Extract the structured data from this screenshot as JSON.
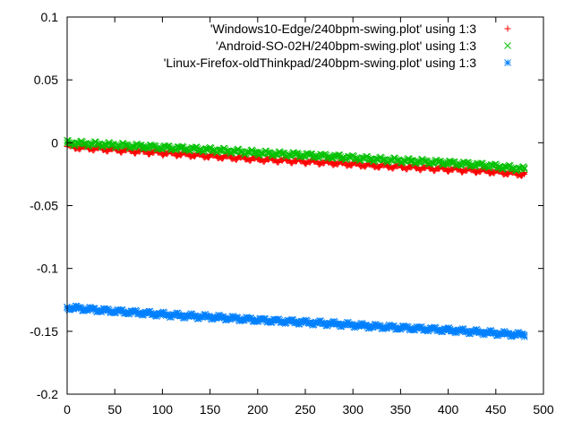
{
  "chart_data": {
    "type": "scatter",
    "title": "",
    "xlabel": "",
    "ylabel": "",
    "xlim": [
      0,
      500
    ],
    "ylim": [
      -0.2,
      0.1
    ],
    "x_ticks": [
      0,
      50,
      100,
      150,
      200,
      250,
      300,
      350,
      400,
      450,
      500
    ],
    "x_tick_labels": [
      "0",
      "50",
      "100",
      "150",
      "200",
      "250",
      "300",
      "350",
      "400",
      "450",
      "500"
    ],
    "y_ticks": [
      -0.2,
      -0.15,
      -0.1,
      -0.05,
      0,
      0.05,
      0.1
    ],
    "y_tick_labels": [
      "-0.2",
      "-0.15",
      "-0.1",
      "-0.05",
      "0",
      "0.05",
      "0.1"
    ],
    "grid": false,
    "legend_position": "top-right",
    "series": [
      {
        "name": "'Windows10-Edge/240bpm-swing.plot' using 1:3",
        "marker": "plus",
        "color": "#ff0000",
        "x": [
          0,
          40,
          80,
          120,
          160,
          200,
          240,
          280,
          320,
          360,
          400,
          440,
          480
        ],
        "y": [
          -0.003,
          -0.005,
          -0.007,
          -0.009,
          -0.011,
          -0.013,
          -0.0145,
          -0.016,
          -0.018,
          -0.0195,
          -0.021,
          -0.0225,
          -0.025
        ]
      },
      {
        "name": "'Android-SO-02H/240bpm-swing.plot' using 1:3",
        "marker": "cross",
        "color": "#00c000",
        "x": [
          0,
          40,
          80,
          120,
          160,
          200,
          240,
          280,
          320,
          360,
          400,
          440,
          480
        ],
        "y": [
          0.0,
          -0.0015,
          -0.003,
          -0.0045,
          -0.006,
          -0.008,
          -0.0095,
          -0.011,
          -0.013,
          -0.0145,
          -0.016,
          -0.018,
          -0.021
        ]
      },
      {
        "name": "'Linux-Firefox-oldThinkpad/240bpm-swing.plot' using 1:3",
        "marker": "star",
        "color": "#0080ff",
        "x": [
          0,
          40,
          80,
          120,
          160,
          200,
          240,
          280,
          320,
          360,
          400,
          440,
          480
        ],
        "y": [
          -0.131,
          -0.1335,
          -0.1355,
          -0.1375,
          -0.139,
          -0.141,
          -0.1425,
          -0.144,
          -0.146,
          -0.1475,
          -0.149,
          -0.151,
          -0.153
        ]
      }
    ]
  }
}
